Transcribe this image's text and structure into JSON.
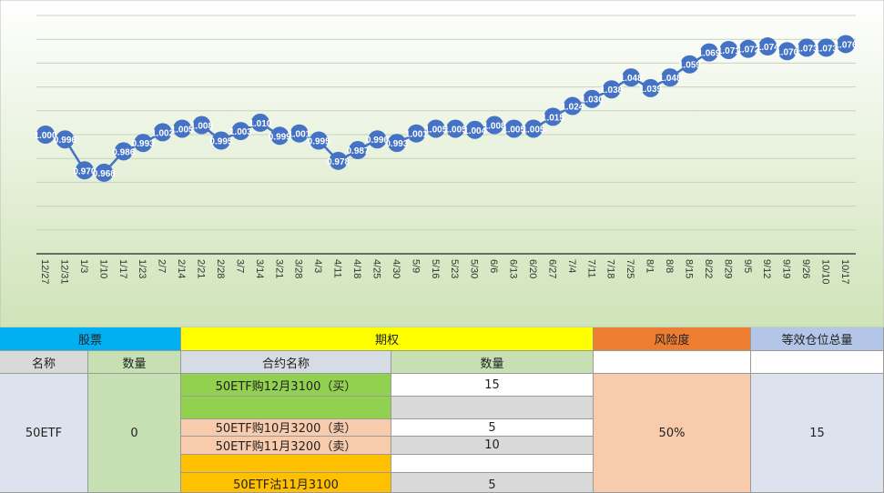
{
  "chart_data": {
    "type": "line",
    "categories": [
      "12/27",
      "12/31",
      "1/3",
      "1/10",
      "1/17",
      "1/23",
      "2/7",
      "2/14",
      "2/21",
      "2/28",
      "3/7",
      "3/14",
      "3/21",
      "3/28",
      "4/3",
      "4/11",
      "4/18",
      "4/25",
      "4/30",
      "5/9",
      "5/16",
      "5/23",
      "5/30",
      "6/6",
      "6/13",
      "6/20",
      "6/27",
      "7/4",
      "7/11",
      "7/18",
      "7/25",
      "8/1",
      "8/8",
      "8/15",
      "8/22",
      "8/29",
      "9/5",
      "9/12",
      "9/19",
      "9/26",
      "10/10",
      "10/17"
    ],
    "series": [
      {
        "color": "#4472c4",
        "values": [
          1.0,
          0.996,
          0.97,
          0.968,
          0.986,
          0.993,
          1.002,
          1.005,
          1.008,
          0.995,
          1.003,
          1.01,
          0.999,
          1.001,
          0.995,
          0.978,
          0.987,
          0.996,
          0.993,
          1.001,
          1.005,
          1.005,
          1.004,
          1.008,
          1.005,
          1.005,
          1.015,
          1.024,
          1.03,
          1.038,
          1.048,
          1.039,
          1.048,
          1.059,
          1.069,
          1.071,
          1.072,
          1.074,
          1.07,
          1.073,
          1.073,
          1.076
        ],
        "value_labels": [
          "1.000",
          "0.996",
          "0.970",
          "0.968",
          "0.986",
          "0.993",
          "1.002",
          "1.005",
          "1.008",
          "0.995",
          "1.003",
          "1.010",
          "0.999",
          "1.001",
          "0.995",
          "0.978",
          "0.987",
          "0.996",
          "0.993",
          "1.001",
          "1.005",
          "1.005",
          "1.004",
          "1.008",
          "1.005",
          "1.005",
          "1.015",
          "1.024",
          "1.030",
          "1.038",
          "1.048",
          "1.039",
          "1.048",
          "1.059",
          "1.069",
          "1.071",
          "1.072",
          "1.074",
          "1.070",
          "1.073",
          "1.073",
          "1.076"
        ]
      }
    ],
    "ylim": [
      0.9,
      1.1
    ],
    "yticks": [
      0.9,
      0.92,
      0.94,
      0.96,
      0.98,
      1,
      1.02,
      1.04,
      1.06,
      1.08,
      1.1
    ],
    "grid": true
  },
  "table": {
    "headers": [
      "股票",
      "期权",
      "风险度",
      "等效仓位总量"
    ],
    "subheaders": [
      "名称",
      "数量",
      "合约名称",
      "数量"
    ],
    "stock": {
      "name": "50ETF",
      "quantity": 0
    },
    "contracts": [
      {
        "name": "50ETF购12月3100（买）",
        "quantity": 15
      },
      {
        "name": "50ETF购10月3200（卖）",
        "quantity": 5
      },
      {
        "name": "50ETF购11月3200（卖）",
        "quantity": 10
      },
      {
        "name": "50ETF沽11月3100",
        "quantity": 5
      }
    ],
    "risk": "50%",
    "total": 15
  }
}
